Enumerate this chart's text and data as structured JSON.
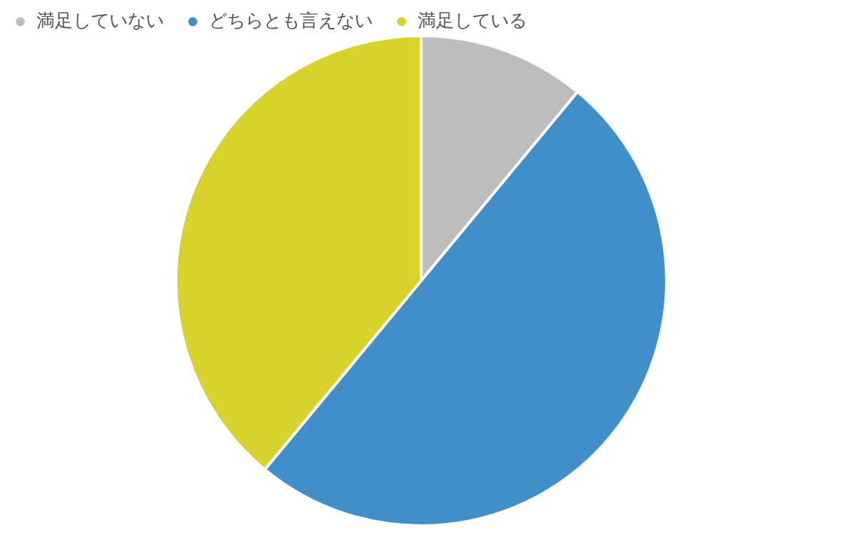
{
  "chart_data": {
    "type": "pie",
    "categories": [
      "満足していない",
      "どちらとも言えない",
      "満足している"
    ],
    "values": [
      11,
      50,
      39
    ],
    "colors": [
      "#bdbdbd",
      "#418fca",
      "#d8d22c"
    ],
    "legend": "top left"
  }
}
